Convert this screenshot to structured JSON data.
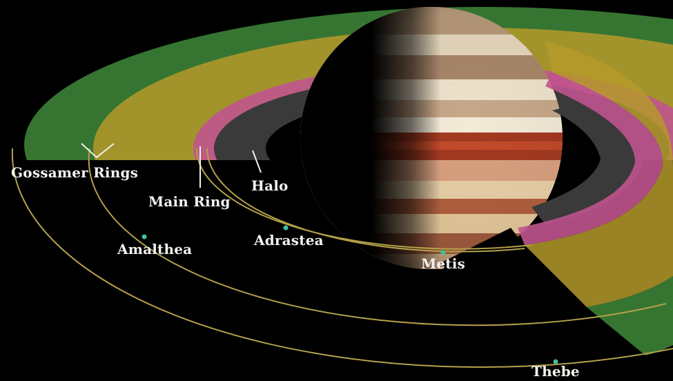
{
  "labels": {
    "gossamer": "Gossamer Rings",
    "main_ring": "Main Ring",
    "halo": "Halo",
    "amalthea": "Amalthea",
    "adrastea": "Adrastea",
    "metis": "Metis",
    "thebe": "Thebe"
  },
  "colors": {
    "background": "#000000",
    "gossamer_outer": "#3f8a3a",
    "gossamer_inner": "#b59a2a",
    "main_ring": "#c0548e",
    "halo": "#3a3a3a",
    "orbit_line": "#b5a24a",
    "moon_marker": "#40c0a0"
  }
}
